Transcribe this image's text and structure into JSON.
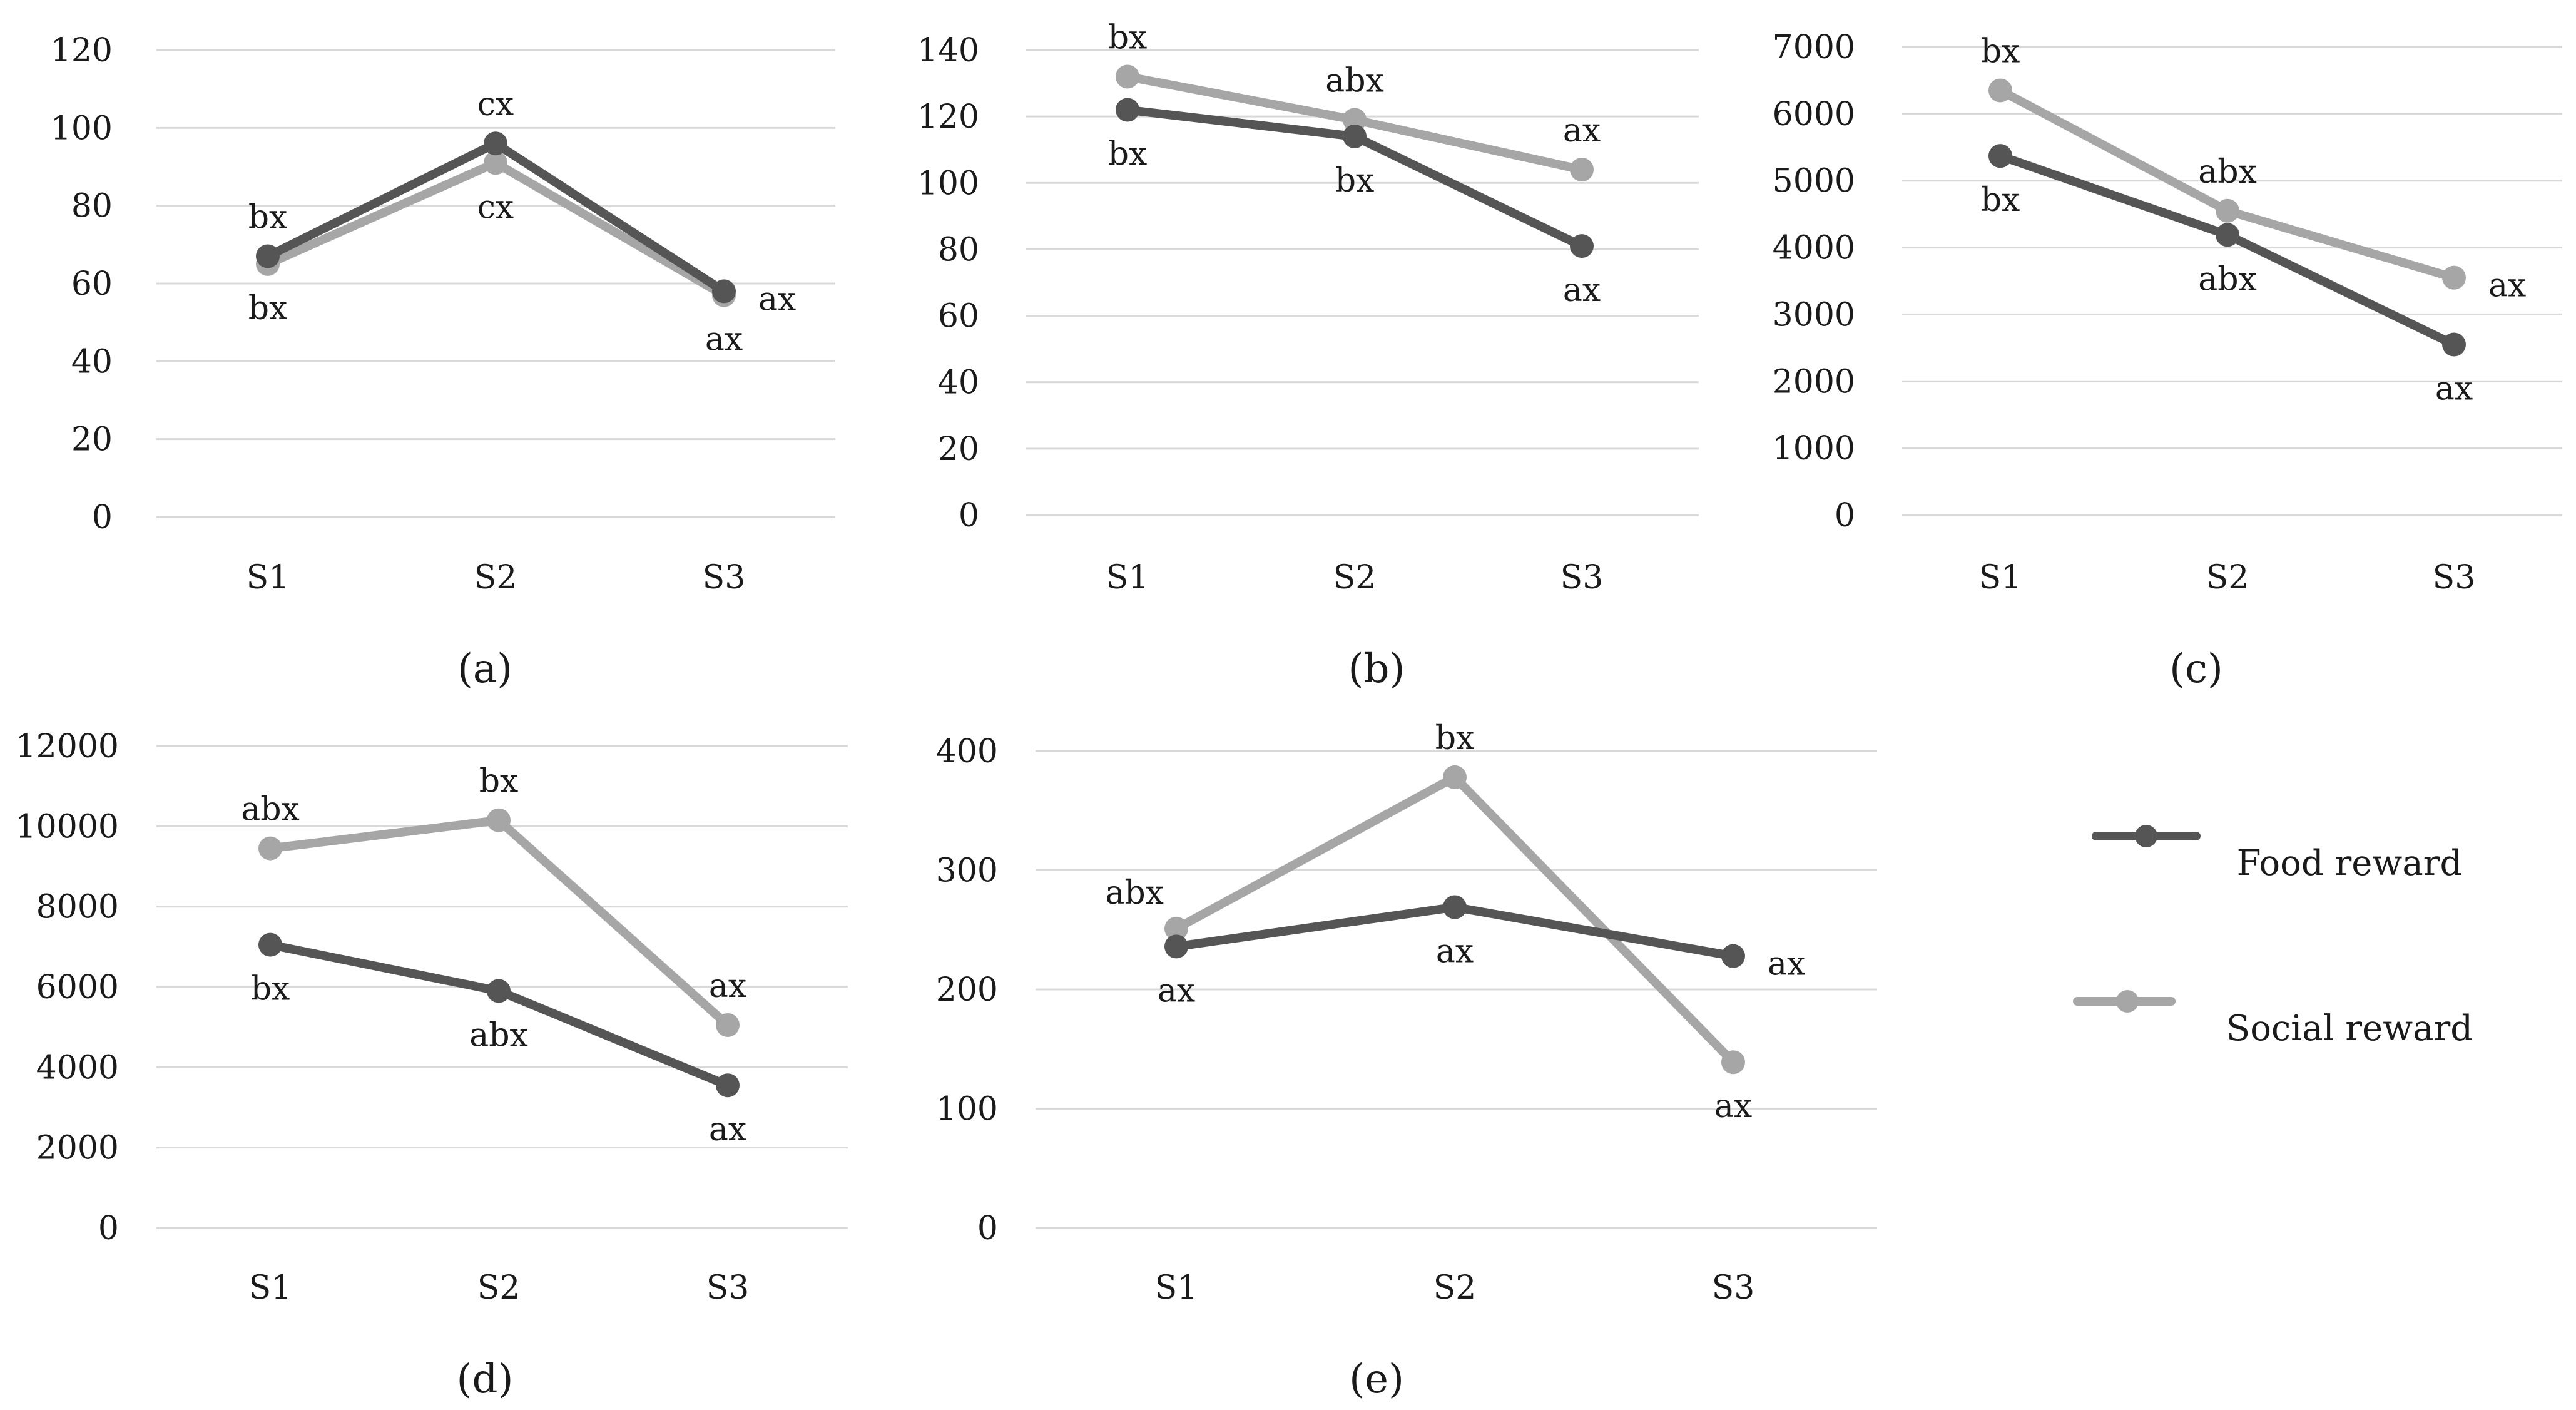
{
  "colors": {
    "food": "#555555",
    "social": "#a6a6a6",
    "grid": "#d9d9d9",
    "text": "#1a1a1a"
  },
  "legend": {
    "food_label": "Food reward",
    "social_label": "Social reward"
  },
  "chart_data": [
    {
      "type": "line",
      "caption": "(a)",
      "categories": [
        "S1",
        "S2",
        "S3"
      ],
      "ylim": [
        0,
        120
      ],
      "yticks": [
        0,
        20,
        40,
        60,
        80,
        100,
        120
      ],
      "series": [
        {
          "name": "Food reward",
          "values": [
            67,
            96,
            58
          ],
          "labels": [
            "bx",
            "cx",
            "ax"
          ]
        },
        {
          "name": "Social reward",
          "values": [
            65,
            91,
            57
          ],
          "labels": [
            "bx",
            "cx",
            "ax"
          ]
        }
      ]
    },
    {
      "type": "line",
      "caption": "(b)",
      "categories": [
        "S1",
        "S2",
        "S3"
      ],
      "ylim": [
        0,
        140
      ],
      "yticks": [
        0,
        20,
        40,
        60,
        80,
        100,
        120,
        140
      ],
      "series": [
        {
          "name": "Food reward",
          "values": [
            122,
            114,
            81
          ],
          "labels": [
            "bx",
            "bx",
            "ax"
          ]
        },
        {
          "name": "Social reward",
          "values": [
            132,
            119,
            104
          ],
          "labels": [
            "bx",
            "abx",
            "ax"
          ]
        }
      ]
    },
    {
      "type": "line",
      "caption": "(c)",
      "categories": [
        "S1",
        "S2",
        "S3"
      ],
      "ylim": [
        0,
        7000
      ],
      "yticks": [
        0,
        1000,
        2000,
        3000,
        4000,
        5000,
        6000,
        7000
      ],
      "series": [
        {
          "name": "Food reward",
          "values": [
            5370,
            4190,
            2550
          ],
          "labels": [
            "bx",
            "abx",
            "ax"
          ]
        },
        {
          "name": "Social reward",
          "values": [
            6350,
            4550,
            3550
          ],
          "labels": [
            "bx",
            "abx",
            "ax"
          ]
        }
      ]
    },
    {
      "type": "line",
      "caption": "(d)",
      "categories": [
        "S1",
        "S2",
        "S3"
      ],
      "ylim": [
        0,
        12000
      ],
      "yticks": [
        0,
        2000,
        4000,
        6000,
        8000,
        10000,
        12000
      ],
      "series": [
        {
          "name": "Food reward",
          "values": [
            7050,
            5900,
            3550
          ],
          "labels": [
            "bx",
            "abx",
            "ax"
          ]
        },
        {
          "name": "Social reward",
          "values": [
            9450,
            10150,
            5050
          ],
          "labels": [
            "abx",
            "bx",
            "ax"
          ]
        }
      ]
    },
    {
      "type": "line",
      "caption": "(e)",
      "categories": [
        "S1",
        "S2",
        "S3"
      ],
      "ylim": [
        0,
        400
      ],
      "yticks": [
        0,
        100,
        200,
        300,
        400
      ],
      "series": [
        {
          "name": "Food reward",
          "values": [
            236,
            269,
            228
          ],
          "labels": [
            "ax",
            "ax",
            "ax"
          ]
        },
        {
          "name": "Social reward",
          "values": [
            251,
            378,
            139
          ],
          "labels": [
            "abx",
            "bx",
            "ax"
          ]
        }
      ]
    }
  ]
}
